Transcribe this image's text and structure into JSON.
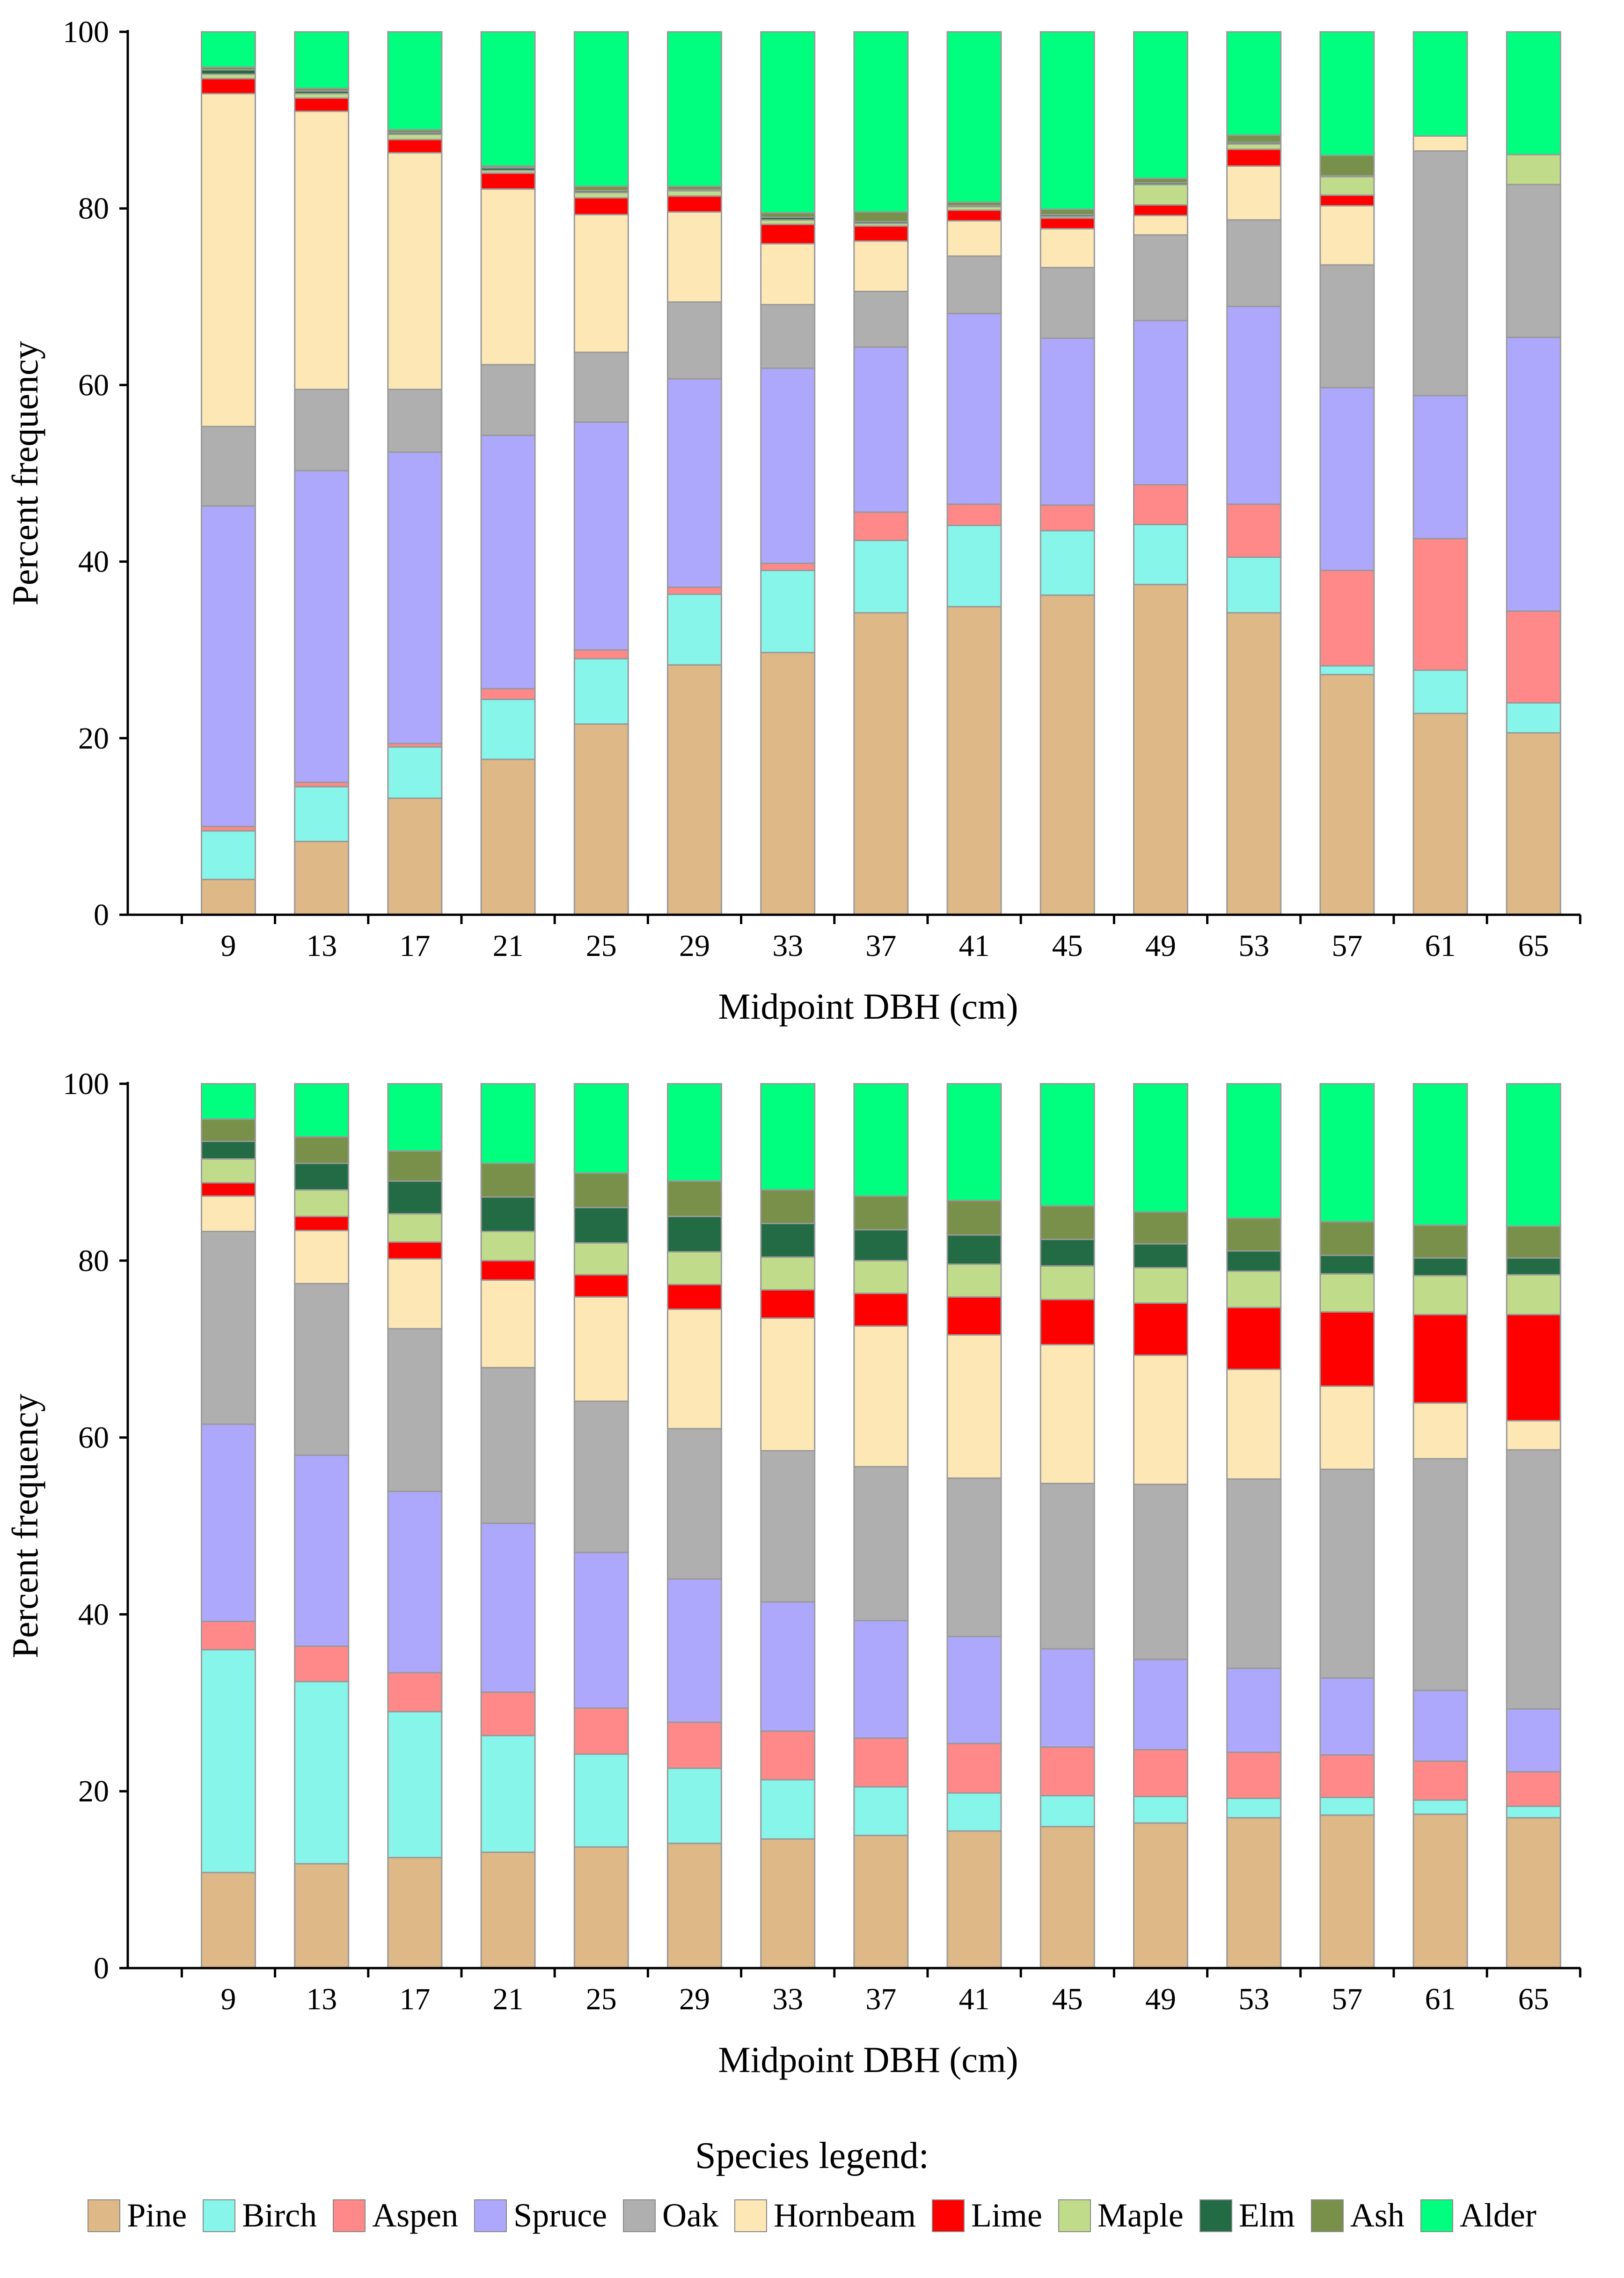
{
  "chart_data": [
    {
      "type": "bar",
      "stacked": true,
      "value_encoding": "cumulative_percent_top_of_each_species_segment",
      "xlabel": "Midpoint DBH (cm)",
      "ylabel": "Percent frequency",
      "ylim": [
        0,
        100
      ],
      "yticks": [
        "0",
        "20",
        "40",
        "60",
        "80",
        "100"
      ],
      "categories": [
        "9",
        "13",
        "17",
        "21",
        "25",
        "29",
        "33",
        "37",
        "41",
        "45",
        "49",
        "53",
        "57",
        "61",
        "65"
      ],
      "series": [
        {
          "name": "Pine",
          "cumulative": [
            4,
            8.3,
            13.2,
            17.6,
            21.6,
            28.3,
            29.7,
            34.2,
            34.9,
            36.2,
            37.4,
            34.2,
            27.2,
            22.8,
            20.6
          ]
        },
        {
          "name": "Birch",
          "cumulative": [
            9.5,
            14.5,
            19,
            24.4,
            29,
            36.3,
            39,
            42.4,
            44.1,
            43.5,
            44.2,
            40.5,
            28.2,
            27.7,
            24
          ]
        },
        {
          "name": "Aspen",
          "cumulative": [
            10,
            15,
            19.4,
            25.6,
            30,
            37.1,
            39.8,
            45.6,
            46.5,
            46.4,
            48.7,
            46.5,
            39,
            42.6,
            34.4
          ]
        },
        {
          "name": "Spruce",
          "cumulative": [
            46.3,
            50.3,
            52.4,
            54.3,
            55.8,
            60.7,
            61.9,
            64.3,
            68.1,
            65.3,
            67.3,
            68.9,
            59.7,
            58.8,
            65.4
          ]
        },
        {
          "name": "Oak",
          "cumulative": [
            55.3,
            59.5,
            59.5,
            62.3,
            63.7,
            69.4,
            69.1,
            70.6,
            74.6,
            73.3,
            77,
            78.7,
            73.6,
            86.5,
            82.7
          ]
        },
        {
          "name": "Hornbeam",
          "cumulative": [
            93,
            91,
            86.3,
            82.2,
            79.3,
            79.6,
            76,
            76.3,
            78.6,
            77.7,
            79.2,
            84.8,
            80.3,
            88.2,
            82.7
          ]
        },
        {
          "name": "Lime",
          "cumulative": [
            94.7,
            92.5,
            87.8,
            84,
            81.2,
            81.4,
            78.2,
            78,
            79.8,
            78.9,
            80.4,
            86.7,
            81.5,
            88.2,
            82.7
          ]
        },
        {
          "name": "Maple",
          "cumulative": [
            95.2,
            93,
            88.4,
            84.3,
            81.8,
            82,
            78.7,
            78.3,
            80.2,
            79.1,
            82.7,
            87.3,
            83.6,
            88.2,
            86.1
          ]
        },
        {
          "name": "Elm",
          "cumulative": [
            95.7,
            93.3,
            88.6,
            84.6,
            82,
            82.1,
            79,
            78.5,
            80.3,
            79.3,
            82.9,
            87.5,
            83.7,
            88.2,
            86.1
          ]
        },
        {
          "name": "Ash",
          "cumulative": [
            96,
            93.6,
            88.9,
            84.8,
            82.5,
            82.5,
            79.5,
            79.6,
            80.7,
            79.9,
            83.4,
            88.3,
            86,
            88.2,
            86.1
          ]
        },
        {
          "name": "Alder",
          "cumulative": [
            100,
            100,
            100,
            100,
            100,
            100,
            100,
            100,
            100,
            100,
            100,
            100,
            100,
            100,
            100
          ]
        }
      ]
    },
    {
      "type": "bar",
      "stacked": true,
      "value_encoding": "cumulative_percent_top_of_each_species_segment",
      "xlabel": "Midpoint DBH (cm)",
      "ylabel": "Percent frequency",
      "ylim": [
        0,
        100
      ],
      "yticks": [
        "0",
        "20",
        "40",
        "60",
        "80",
        "100"
      ],
      "categories": [
        "9",
        "13",
        "17",
        "21",
        "25",
        "29",
        "33",
        "37",
        "41",
        "45",
        "49",
        "53",
        "57",
        "61",
        "65"
      ],
      "series": [
        {
          "name": "Pine",
          "cumulative": [
            10.8,
            11.8,
            12.5,
            13.1,
            13.7,
            14.1,
            14.6,
            15,
            15.5,
            16,
            16.4,
            17,
            17.3,
            17.4,
            17
          ]
        },
        {
          "name": "Birch",
          "cumulative": [
            36,
            32.4,
            29,
            26.3,
            24.2,
            22.6,
            21.3,
            20.5,
            19.8,
            19.5,
            19.4,
            19.2,
            19.3,
            19,
            18.3
          ]
        },
        {
          "name": "Aspen",
          "cumulative": [
            39.2,
            36.4,
            33.4,
            31.2,
            29.4,
            27.8,
            26.8,
            26,
            25.4,
            25,
            24.7,
            24.4,
            24.1,
            23.4,
            22.2
          ]
        },
        {
          "name": "Spruce",
          "cumulative": [
            61.5,
            58,
            53.9,
            50.3,
            47,
            44,
            41.4,
            39.3,
            37.5,
            36.1,
            34.9,
            33.9,
            32.8,
            31.4,
            29.3
          ]
        },
        {
          "name": "Oak",
          "cumulative": [
            83.3,
            77.4,
            72.3,
            67.9,
            64.1,
            61,
            58.5,
            56.7,
            55.4,
            54.8,
            54.7,
            55.3,
            56.4,
            57.6,
            58.6
          ]
        },
        {
          "name": "Hornbeam",
          "cumulative": [
            87.3,
            83.4,
            80.2,
            77.8,
            75.9,
            74.5,
            73.5,
            72.6,
            71.6,
            70.5,
            69.3,
            67.7,
            65.8,
            63.9,
            61.9
          ]
        },
        {
          "name": "Lime",
          "cumulative": [
            88.8,
            85,
            82.1,
            80,
            78.4,
            77.3,
            76.7,
            76.3,
            75.9,
            75.6,
            75.2,
            74.7,
            74.2,
            73.9,
            73.9
          ]
        },
        {
          "name": "Maple",
          "cumulative": [
            91.5,
            88,
            85.3,
            83.3,
            82,
            81,
            80.4,
            80,
            79.6,
            79.4,
            79.2,
            78.8,
            78.5,
            78.3,
            78.4
          ]
        },
        {
          "name": "Elm",
          "cumulative": [
            93.5,
            91,
            89,
            87.2,
            86,
            85,
            84.2,
            83.5,
            82.9,
            82.4,
            81.9,
            81.1,
            80.6,
            80.3,
            80.3
          ]
        },
        {
          "name": "Ash",
          "cumulative": [
            96,
            94,
            92.4,
            91,
            89.9,
            89,
            88,
            87.3,
            86.8,
            86.2,
            85.5,
            84.8,
            84.4,
            84,
            83.9
          ]
        },
        {
          "name": "Alder",
          "cumulative": [
            100,
            100,
            100,
            100,
            100,
            100,
            100,
            100,
            100,
            100,
            100,
            100,
            100,
            100,
            100
          ]
        }
      ]
    }
  ],
  "colors": {
    "Pine": "#DEB887",
    "Birch": "#87F5EA",
    "Aspen": "#FF8888",
    "Spruce": "#AEA8FC",
    "Oak": "#AFAFAF",
    "Hornbeam": "#FDE8B5",
    "Lime": "#FF0000",
    "Maple": "#C0DC8A",
    "Elm": "#236B45",
    "Ash": "#79904A",
    "Alder": "#00FF7F"
  },
  "legend": {
    "title": "Species legend:",
    "items": [
      "Pine",
      "Birch",
      "Aspen",
      "Spruce",
      "Oak",
      "Hornbeam",
      "Lime",
      "Maple",
      "Elm",
      "Ash",
      "Alder"
    ]
  }
}
